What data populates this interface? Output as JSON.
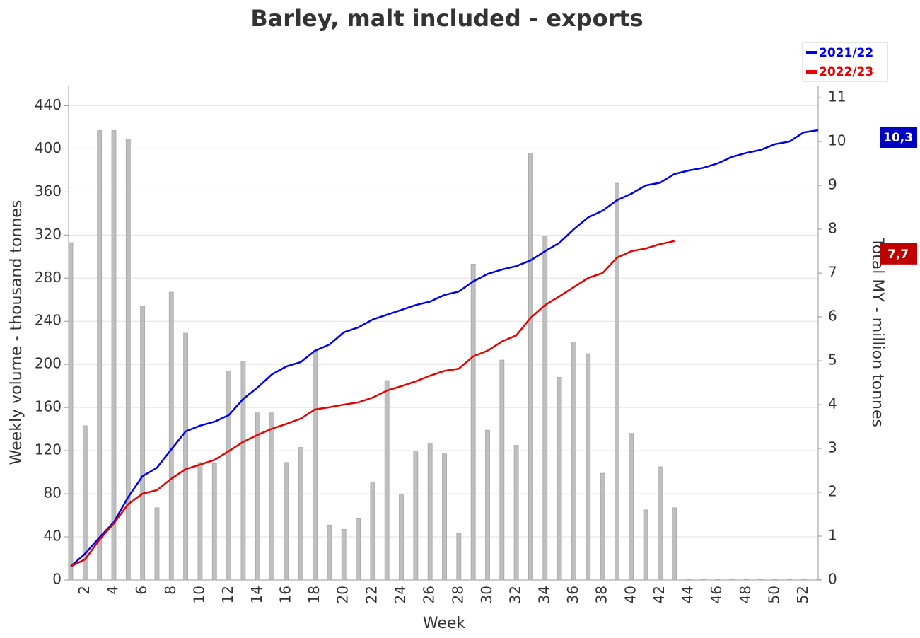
{
  "chart_data": {
    "type": "bar-line",
    "title": "Barley, malt included - exports",
    "x_label": "Week",
    "y_label": "Weekly volume - thousand tonnes",
    "y2_label": "Total MY - million tonnes",
    "categories": [
      null,
      2,
      null,
      4,
      null,
      6,
      null,
      8,
      null,
      10,
      null,
      12,
      null,
      14,
      null,
      16,
      null,
      18,
      null,
      20,
      null,
      22,
      null,
      24,
      null,
      26,
      null,
      28,
      null,
      30,
      null,
      32,
      null,
      34,
      null,
      36,
      null,
      38,
      null,
      40,
      null,
      42,
      null,
      44,
      null,
      46,
      null,
      48,
      null,
      50,
      null,
      52,
      null
    ],
    "values": [
      313,
      143,
      417,
      417,
      409,
      254,
      67,
      267,
      229,
      109,
      108,
      194,
      203,
      155,
      155,
      109,
      123,
      213,
      51,
      47,
      57,
      91,
      185,
      79,
      119,
      127,
      117,
      43,
      293,
      139,
      204,
      125,
      396,
      319,
      188,
      220,
      210,
      99,
      368,
      136,
      65,
      105,
      67,
      0,
      0,
      0,
      0,
      0,
      0,
      0,
      0,
      0,
      0
    ],
    "color": "#bfbfbf",
    "series": [
      {
        "name": "2021/22",
        "color": "#0000e6",
        "axis": "y2",
        "end_label": "10,3",
        "label_color": "#0000c0",
        "values": [
          0.31,
          0.6,
          0.97,
          1.32,
          1.89,
          2.37,
          2.56,
          2.98,
          3.39,
          3.52,
          3.61,
          3.76,
          4.13,
          4.39,
          4.69,
          4.87,
          4.97,
          5.23,
          5.37,
          5.65,
          5.76,
          5.94,
          6.05,
          6.16,
          6.27,
          6.35,
          6.5,
          6.58,
          6.81,
          6.98,
          7.08,
          7.16,
          7.29,
          7.5,
          7.69,
          8.0,
          8.27,
          8.42,
          8.66,
          8.81,
          9.0,
          9.06,
          9.26,
          9.34,
          9.4,
          9.5,
          9.65,
          9.74,
          9.81,
          9.94,
          10.0,
          10.21,
          10.26
        ]
      },
      {
        "name": "2022/23",
        "color": "#e60000",
        "axis": "y2",
        "end_label": "7,7",
        "label_color": "#c00000",
        "values": [
          0.31,
          0.47,
          0.92,
          1.29,
          1.73,
          1.97,
          2.05,
          2.31,
          2.53,
          2.63,
          2.74,
          2.94,
          3.15,
          3.31,
          3.45,
          3.56,
          3.68,
          3.89,
          3.94,
          4.0,
          4.05,
          4.16,
          4.32,
          4.42,
          4.53,
          4.66,
          4.77,
          4.82,
          5.1,
          5.23,
          5.44,
          5.58,
          5.98,
          6.27,
          6.47,
          6.68,
          6.89,
          7.0,
          7.35,
          7.5,
          7.56,
          7.66,
          7.73,
          null,
          null,
          null,
          null,
          null,
          null,
          null,
          null,
          null,
          null
        ]
      }
    ],
    "ylim": [
      0,
      458
    ],
    "yticks": [
      0,
      40,
      80,
      120,
      160,
      200,
      240,
      280,
      320,
      360,
      400,
      440
    ],
    "y2lim": [
      0,
      11.26
    ],
    "y2ticks": [
      0,
      1,
      2,
      3,
      4,
      5,
      6,
      7,
      8,
      9,
      10,
      11
    ],
    "grid": true,
    "legend": "top-right"
  }
}
